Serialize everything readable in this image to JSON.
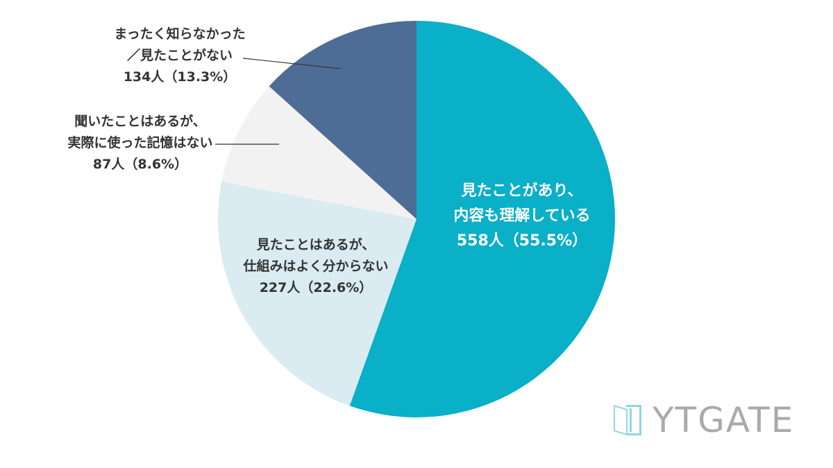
{
  "chart_data": {
    "type": "pie",
    "title": "",
    "start": "top, clockwise",
    "slices": [
      {
        "label_lines": [
          "見たことがあり、",
          "内容も理解している"
        ],
        "count": 558,
        "count_text": "558人",
        "percent": 55.5,
        "percent_text": "（55.5%）",
        "color": "#0aafc8",
        "label_color": "#ffffff"
      },
      {
        "label_lines": [
          "見たことはあるが、",
          "仕組みはよく分からない"
        ],
        "count": 227,
        "count_text": "227人",
        "percent": 22.6,
        "percent_text": "（22.6%）",
        "color": "#daebf1",
        "label_color": "#333333"
      },
      {
        "label_lines": [
          "聞いたことはあるが、",
          "実際に使った記憶はない"
        ],
        "count": 87,
        "count_text": "87人",
        "percent": 8.6,
        "percent_text": "（8.6%）",
        "color": "#f2f2f2",
        "label_color": "#333333"
      },
      {
        "label_lines": [
          "まったく知らなかった",
          "／見たことがない"
        ],
        "count": 134,
        "count_text": "134人",
        "percent": 13.3,
        "percent_text": "（13.3%）",
        "color": "#4e6d96",
        "label_color": "#333333"
      }
    ]
  },
  "logo": {
    "text": "YTGATE",
    "color": "#aaaaaa",
    "mark_color": "#8fd6e3"
  }
}
